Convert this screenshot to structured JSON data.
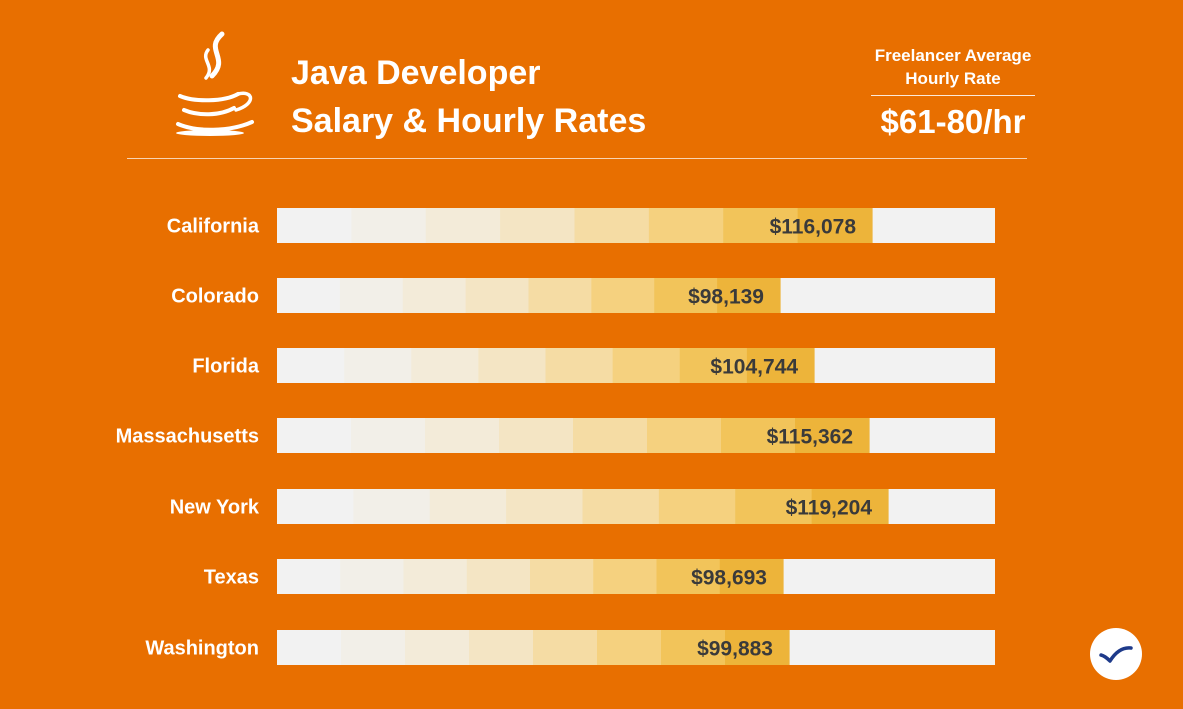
{
  "header": {
    "title_line1": "Java Developer",
    "title_line2": "Salary & Hourly Rates",
    "rate_label_line1": "Freelancer Average",
    "rate_label_line2": "Hourly Rate",
    "rate_value": "$61-80/hr",
    "logo_icon": "java-coffee-cup-icon",
    "badge_icon": "brand-bird-icon"
  },
  "colors": {
    "background": "#E86F00",
    "track": "#F2F2F2",
    "text_white": "#FFFFFF",
    "value_text": "#3A3A3A",
    "bar_gradient": [
      "#F2F2F2",
      "#F2EFE8",
      "#F3EBD9",
      "#F4E5C4",
      "#F5DCA4",
      "#F5D17F",
      "#F2C45A",
      "#EDB43A"
    ],
    "badge_accent": "#1E3A8A"
  },
  "chart_data": {
    "type": "bar",
    "orientation": "horizontal",
    "title": "Java Developer Salary & Hourly Rates",
    "xlabel": "",
    "ylabel": "",
    "xlim": [
      0,
      140000
    ],
    "grid": false,
    "categories": [
      "California",
      "Colorado",
      "Florida",
      "Massachusetts",
      "New York",
      "Texas",
      "Washington"
    ],
    "values": [
      116078,
      98139,
      104744,
      115362,
      119204,
      98693,
      99883
    ],
    "value_labels": [
      "$116,078",
      "$98,139",
      "$104,744",
      "$115,362",
      "$119,204",
      "$98,693",
      "$99,883"
    ]
  }
}
